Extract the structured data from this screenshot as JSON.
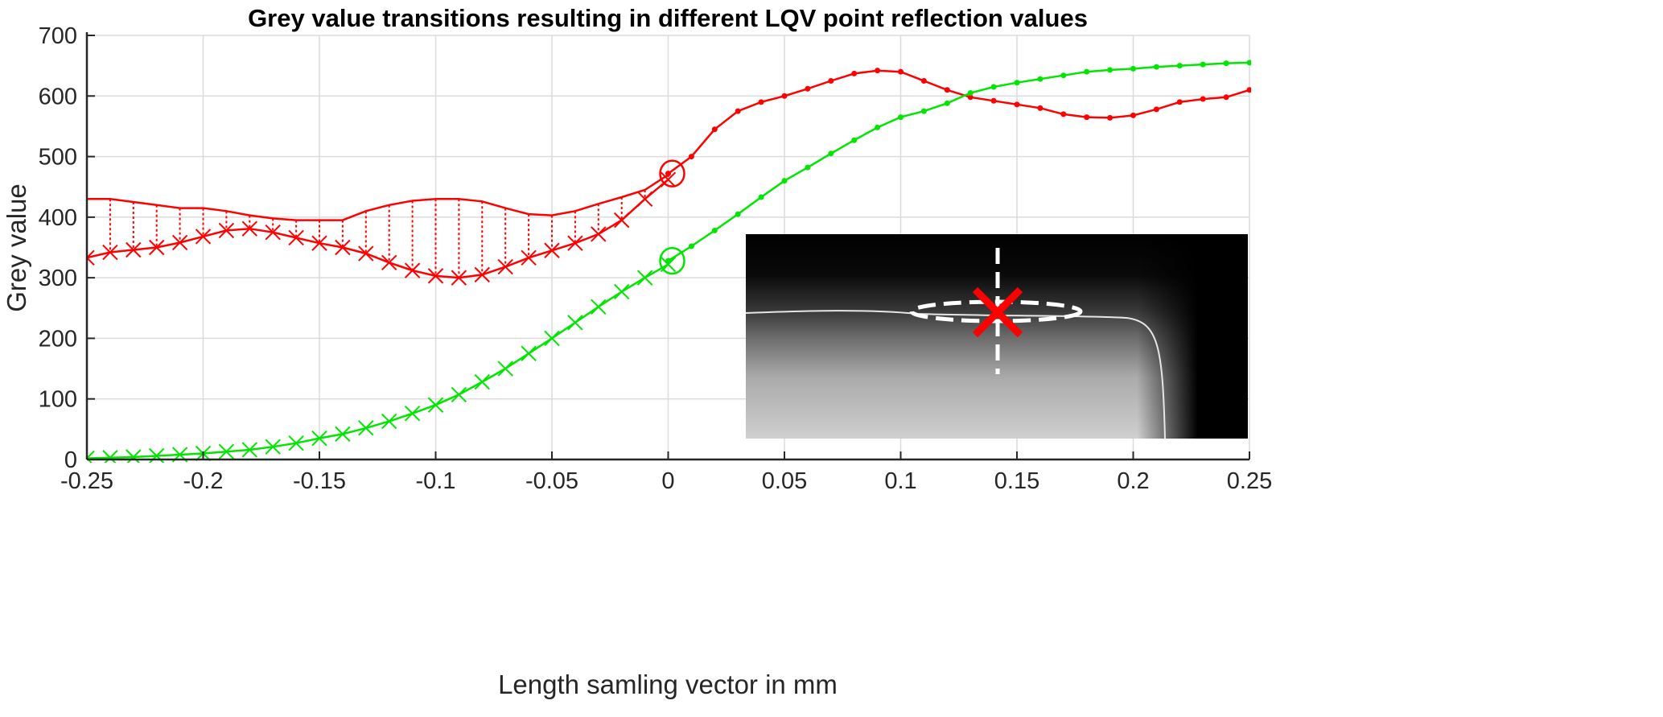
{
  "chart_data": {
    "type": "line",
    "title": "Grey value transitions resulting in different LQV point reflection values",
    "xlabel": "Length samling vector in mm",
    "ylabel": "Grey value",
    "xlim": [
      -0.25,
      0.25
    ],
    "ylim": [
      0,
      700
    ],
    "xticks": [
      -0.25,
      -0.2,
      -0.15,
      -0.1,
      -0.05,
      0,
      0.05,
      0.1,
      0.15,
      0.2,
      0.25
    ],
    "xtick_labels": [
      "-0.25",
      "-0.2",
      "-0.15",
      "-0.1",
      "-0.05",
      "0",
      "0.05",
      "0.1",
      "0.15",
      "0.2",
      "0.25"
    ],
    "yticks": [
      0,
      100,
      200,
      300,
      400,
      500,
      600,
      700
    ],
    "ytick_labels": [
      "0",
      "100",
      "200",
      "300",
      "400",
      "500",
      "600",
      "700"
    ],
    "grid": true,
    "colors": {
      "red": "#ff0000",
      "green": "#00e600"
    },
    "series_x_left": [
      -0.25,
      -0.24,
      -0.23,
      -0.22,
      -0.21,
      -0.2,
      -0.19,
      -0.18,
      -0.17,
      -0.16,
      -0.15,
      -0.14,
      -0.13,
      -0.12,
      -0.11,
      -0.1,
      -0.09,
      -0.08,
      -0.07,
      -0.06,
      -0.05,
      -0.04,
      -0.03,
      -0.02,
      -0.01,
      0
    ],
    "series_x_right": [
      0,
      0.01,
      0.02,
      0.03,
      0.04,
      0.05,
      0.06,
      0.07,
      0.08,
      0.09,
      0.1,
      0.11,
      0.12,
      0.13,
      0.14,
      0.15,
      0.16,
      0.17,
      0.18,
      0.19,
      0.2,
      0.21,
      0.22,
      0.23,
      0.24,
      0.25
    ],
    "series": [
      {
        "id": "red-cross",
        "color": "red",
        "marker": "x",
        "side": "left",
        "values": [
          333,
          342,
          346,
          350,
          358,
          368,
          378,
          381,
          375,
          366,
          357,
          350,
          340,
          325,
          312,
          303,
          300,
          305,
          318,
          333,
          345,
          357,
          372,
          395,
          430,
          462
        ]
      },
      {
        "id": "red-envelope",
        "color": "red",
        "marker": "none",
        "side": "left",
        "stems_to": "red-cross",
        "values": [
          430,
          430,
          425,
          420,
          415,
          415,
          410,
          403,
          398,
          395,
          395,
          395,
          410,
          420,
          427,
          430,
          430,
          426,
          415,
          405,
          403,
          410,
          422,
          433,
          445,
          470
        ]
      },
      {
        "id": "red-dots",
        "color": "red",
        "marker": "dot",
        "side": "right",
        "values": [
          472,
          500,
          545,
          575,
          590,
          600,
          612,
          625,
          637,
          642,
          640,
          625,
          610,
          598,
          592,
          586,
          580,
          570,
          565,
          564,
          568,
          578,
          590,
          595,
          598,
          610
        ]
      },
      {
        "id": "green-cross",
        "color": "green",
        "marker": "x",
        "side": "left",
        "values": [
          2,
          3,
          4,
          6,
          8,
          10,
          13,
          16,
          21,
          27,
          35,
          42,
          52,
          63,
          76,
          90,
          107,
          128,
          150,
          175,
          200,
          226,
          252,
          277,
          300,
          322
        ]
      },
      {
        "id": "green-dots",
        "color": "green",
        "marker": "dot",
        "side": "right",
        "values": [
          328,
          352,
          378,
          405,
          433,
          460,
          482,
          505,
          527,
          548,
          565,
          575,
          588,
          605,
          615,
          622,
          628,
          634,
          640,
          643,
          645,
          648,
          650,
          652,
          654,
          655
        ]
      }
    ],
    "circles": [
      {
        "color": "red",
        "x": 0,
        "y": 472
      },
      {
        "color": "green",
        "x": 0,
        "y": 328
      }
    ],
    "inset": {
      "kind": "grayscale-image",
      "markers": [
        "dashed-vertical-line",
        "dashed-ellipse",
        "red-x"
      ]
    }
  }
}
